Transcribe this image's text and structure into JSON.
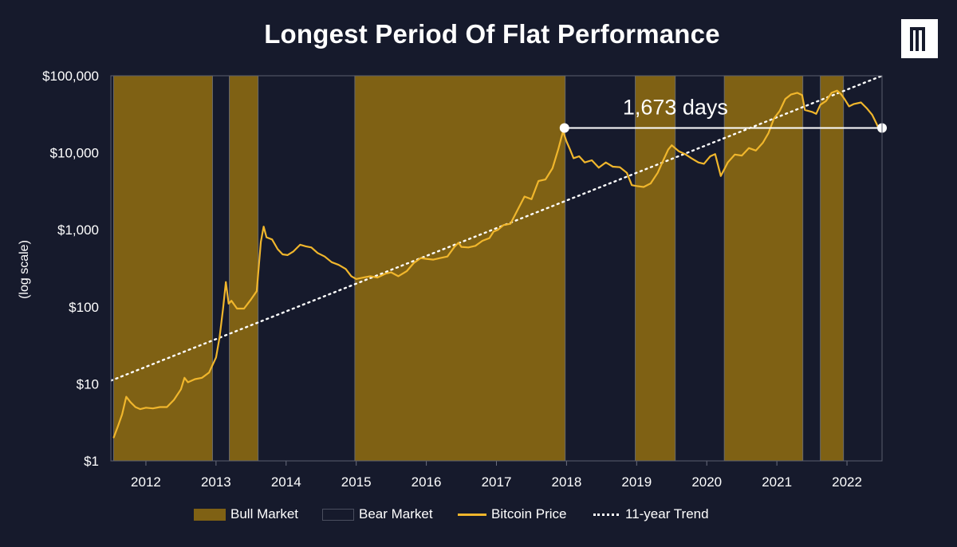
{
  "title": "Longest Period Of Flat Performance",
  "logo": {
    "name": "brand-logo"
  },
  "y_axis_label": "(log scale)",
  "colors": {
    "background": "#161a2c",
    "bull": "#7f6114",
    "bear": "#161a2c",
    "price": "#f0b62c",
    "trend": "#ffffff",
    "annotation": "#ffffff"
  },
  "legend": [
    {
      "key": "bull",
      "label": "Bull Market"
    },
    {
      "key": "bear",
      "label": "Bear Market"
    },
    {
      "key": "price",
      "label": "Bitcoin Price"
    },
    {
      "key": "trend",
      "label": "11-year Trend"
    }
  ],
  "chart_data": {
    "type": "line",
    "title": "Longest Period Of Flat Performance",
    "ylabel": "(log scale)",
    "yscale": "log",
    "ylim": [
      1,
      100000
    ],
    "xlim": [
      2011.5,
      2022.5
    ],
    "y_ticks": [
      {
        "value": 1,
        "label": "$1"
      },
      {
        "value": 10,
        "label": "$10"
      },
      {
        "value": 100,
        "label": "$100"
      },
      {
        "value": 1000,
        "label": "$1,000"
      },
      {
        "value": 10000,
        "label": "$10,000"
      },
      {
        "value": 100000,
        "label": "$100,000"
      }
    ],
    "x_ticks": [
      {
        "value": 2012,
        "label": "2012"
      },
      {
        "value": 2013,
        "label": "2013"
      },
      {
        "value": 2014,
        "label": "2014"
      },
      {
        "value": 2015,
        "label": "2015"
      },
      {
        "value": 2016,
        "label": "2016"
      },
      {
        "value": 2017,
        "label": "2017"
      },
      {
        "value": 2018,
        "label": "2018"
      },
      {
        "value": 2019,
        "label": "2019"
      },
      {
        "value": 2020,
        "label": "2020"
      },
      {
        "value": 2021,
        "label": "2021"
      },
      {
        "value": 2022,
        "label": "2022"
      }
    ],
    "bull_markets": [
      [
        2011.54,
        2012.95
      ],
      [
        2013.19,
        2013.6
      ],
      [
        2014.98,
        2017.98
      ],
      [
        2018.98,
        2019.55
      ],
      [
        2020.25,
        2021.37
      ],
      [
        2021.62,
        2021.95
      ]
    ],
    "series": [
      {
        "name": "Bitcoin Price",
        "points": [
          [
            2011.54,
            2.0
          ],
          [
            2011.6,
            2.8
          ],
          [
            2011.66,
            4.0
          ],
          [
            2011.72,
            6.8
          ],
          [
            2011.78,
            5.8
          ],
          [
            2011.85,
            5.0
          ],
          [
            2011.92,
            4.7
          ],
          [
            2012.0,
            4.9
          ],
          [
            2012.1,
            4.8
          ],
          [
            2012.2,
            5.0
          ],
          [
            2012.3,
            5.0
          ],
          [
            2012.4,
            6.2
          ],
          [
            2012.5,
            8.5
          ],
          [
            2012.55,
            12
          ],
          [
            2012.6,
            10.5
          ],
          [
            2012.7,
            11.5
          ],
          [
            2012.8,
            12
          ],
          [
            2012.9,
            14
          ],
          [
            2013.0,
            22
          ],
          [
            2013.05,
            40
          ],
          [
            2013.1,
            95
          ],
          [
            2013.14,
            210
          ],
          [
            2013.18,
            110
          ],
          [
            2013.22,
            120
          ],
          [
            2013.3,
            95
          ],
          [
            2013.4,
            95
          ],
          [
            2013.5,
            125
          ],
          [
            2013.58,
            160
          ],
          [
            2013.64,
            700
          ],
          [
            2013.68,
            1100
          ],
          [
            2013.72,
            800
          ],
          [
            2013.8,
            750
          ],
          [
            2013.88,
            560
          ],
          [
            2013.95,
            480
          ],
          [
            2014.02,
            470
          ],
          [
            2014.1,
            520
          ],
          [
            2014.2,
            640
          ],
          [
            2014.28,
            610
          ],
          [
            2014.36,
            590
          ],
          [
            2014.45,
            500
          ],
          [
            2014.55,
            450
          ],
          [
            2014.65,
            380
          ],
          [
            2014.75,
            350
          ],
          [
            2014.85,
            310
          ],
          [
            2014.93,
            250
          ],
          [
            2015.0,
            230
          ],
          [
            2015.1,
            240
          ],
          [
            2015.2,
            250
          ],
          [
            2015.3,
            240
          ],
          [
            2015.42,
            270
          ],
          [
            2015.5,
            280
          ],
          [
            2015.6,
            250
          ],
          [
            2015.72,
            290
          ],
          [
            2015.82,
            370
          ],
          [
            2015.92,
            430
          ],
          [
            2016.0,
            420
          ],
          [
            2016.1,
            410
          ],
          [
            2016.2,
            430
          ],
          [
            2016.3,
            450
          ],
          [
            2016.4,
            600
          ],
          [
            2016.46,
            680
          ],
          [
            2016.5,
            600
          ],
          [
            2016.6,
            590
          ],
          [
            2016.7,
            620
          ],
          [
            2016.8,
            720
          ],
          [
            2016.9,
            780
          ],
          [
            2016.96,
            950
          ],
          [
            2017.02,
            1000
          ],
          [
            2017.1,
            1150
          ],
          [
            2017.2,
            1200
          ],
          [
            2017.3,
            1800
          ],
          [
            2017.4,
            2700
          ],
          [
            2017.5,
            2500
          ],
          [
            2017.6,
            4300
          ],
          [
            2017.7,
            4500
          ],
          [
            2017.8,
            6300
          ],
          [
            2017.88,
            11000
          ],
          [
            2017.95,
            19000
          ],
          [
            2018.0,
            14000
          ],
          [
            2018.05,
            11000
          ],
          [
            2018.1,
            8500
          ],
          [
            2018.18,
            9000
          ],
          [
            2018.26,
            7500
          ],
          [
            2018.36,
            8000
          ],
          [
            2018.46,
            6400
          ],
          [
            2018.56,
            7500
          ],
          [
            2018.66,
            6600
          ],
          [
            2018.76,
            6500
          ],
          [
            2018.86,
            5500
          ],
          [
            2018.93,
            3800
          ],
          [
            2019.0,
            3700
          ],
          [
            2019.1,
            3600
          ],
          [
            2019.2,
            4000
          ],
          [
            2019.3,
            5500
          ],
          [
            2019.38,
            8000
          ],
          [
            2019.45,
            11000
          ],
          [
            2019.5,
            12500
          ],
          [
            2019.6,
            10500
          ],
          [
            2019.7,
            9500
          ],
          [
            2019.78,
            8500
          ],
          [
            2019.88,
            7500
          ],
          [
            2019.96,
            7200
          ],
          [
            2020.05,
            9000
          ],
          [
            2020.12,
            9600
          ],
          [
            2020.2,
            5000
          ],
          [
            2020.3,
            7500
          ],
          [
            2020.4,
            9500
          ],
          [
            2020.5,
            9200
          ],
          [
            2020.6,
            11500
          ],
          [
            2020.7,
            10700
          ],
          [
            2020.8,
            13500
          ],
          [
            2020.88,
            18000
          ],
          [
            2020.96,
            28000
          ],
          [
            2021.04,
            35000
          ],
          [
            2021.12,
            50000
          ],
          [
            2021.2,
            57000
          ],
          [
            2021.29,
            60000
          ],
          [
            2021.36,
            56000
          ],
          [
            2021.4,
            36000
          ],
          [
            2021.5,
            34000
          ],
          [
            2021.56,
            32000
          ],
          [
            2021.62,
            42000
          ],
          [
            2021.7,
            47000
          ],
          [
            2021.78,
            60000
          ],
          [
            2021.86,
            64000
          ],
          [
            2021.92,
            57000
          ],
          [
            2021.97,
            49000
          ],
          [
            2022.03,
            40000
          ],
          [
            2022.1,
            43000
          ],
          [
            2022.2,
            45000
          ],
          [
            2022.28,
            38000
          ],
          [
            2022.36,
            31000
          ],
          [
            2022.42,
            24000
          ],
          [
            2022.47,
            19000
          ],
          [
            2022.5,
            20500
          ]
        ]
      },
      {
        "name": "11-year Trend",
        "points": [
          [
            2011.5,
            11
          ],
          [
            2022.5,
            100000
          ]
        ]
      }
    ],
    "annotation": {
      "label": "1,673 days",
      "from": [
        2017.97,
        21000
      ],
      "to": [
        2022.5,
        21000
      ]
    }
  }
}
